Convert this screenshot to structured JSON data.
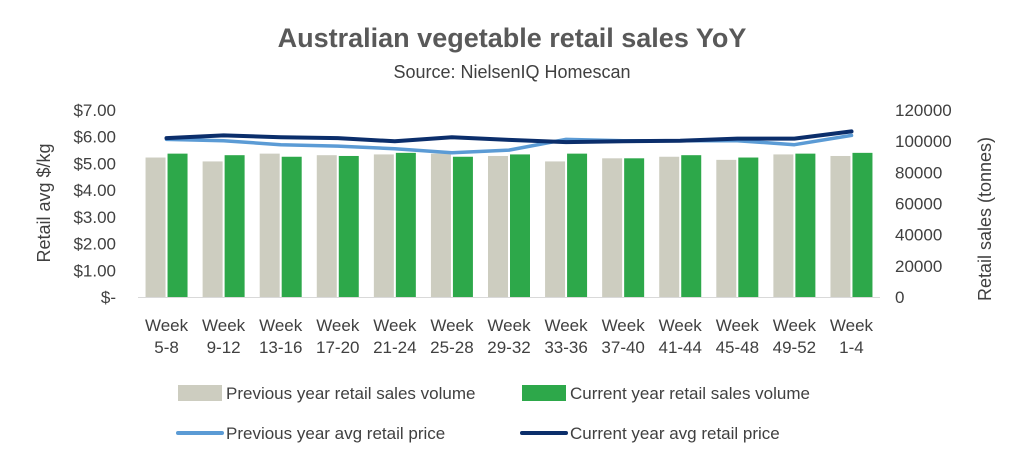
{
  "chart_data": {
    "type": "bar",
    "title": "Australian vegetable retail sales YoY",
    "subtitle": "Source: NielsenIQ Homescan",
    "categories": [
      [
        "Week",
        "5-8"
      ],
      [
        "Week",
        "9-12"
      ],
      [
        "Week",
        "13-16"
      ],
      [
        "Week",
        "17-20"
      ],
      [
        "Week",
        "21-24"
      ],
      [
        "Week",
        "25-28"
      ],
      [
        "Week",
        "29-32"
      ],
      [
        "Week",
        "33-36"
      ],
      [
        "Week",
        "37-40"
      ],
      [
        "Week",
        "41-44"
      ],
      [
        "Week",
        "45-48"
      ],
      [
        "Week",
        "49-52"
      ],
      [
        "Week",
        "1-4"
      ]
    ],
    "y_left": {
      "label": "Retail avg $/kg",
      "min": 0,
      "max": 7,
      "step": 1,
      "tick_labels": [
        "$-",
        "$1.00",
        "$2.00",
        "$3.00",
        "$4.00",
        "$5.00",
        "$6.00",
        "$7.00"
      ]
    },
    "y_right": {
      "label": "Retail sales (tonnes)",
      "min": 0,
      "max": 120000,
      "step": 20000,
      "tick_labels": [
        "0",
        "20000",
        "40000",
        "60000",
        "80000",
        "100000",
        "120000"
      ]
    },
    "grid": false,
    "legend_position": "bottom",
    "series": [
      {
        "name": "Previous year retail sales volume",
        "type": "bar",
        "axis": "right",
        "color": "#CDCDC0",
        "values": [
          89500,
          87000,
          92000,
          91000,
          91500,
          92000,
          90500,
          87000,
          89000,
          90000,
          88000,
          91500,
          90500
        ]
      },
      {
        "name": "Current year retail sales volume",
        "type": "bar",
        "axis": "right",
        "color": "#2DA84A",
        "values": [
          92000,
          91000,
          90000,
          90500,
          92500,
          90000,
          91500,
          92000,
          89000,
          91000,
          89500,
          92000,
          92500
        ]
      },
      {
        "name": "Previous year avg retail price",
        "type": "line",
        "axis": "left",
        "color": "#5B9BD5",
        "values": [
          5.9,
          5.85,
          5.7,
          5.65,
          5.55,
          5.4,
          5.5,
          5.9,
          5.85,
          5.85,
          5.85,
          5.7,
          6.05
        ]
      },
      {
        "name": "Current year avg retail price",
        "type": "line",
        "axis": "left",
        "color": "#0B2E6B",
        "values": [
          5.95,
          6.05,
          5.98,
          5.95,
          5.83,
          5.98,
          5.88,
          5.8,
          5.83,
          5.85,
          5.93,
          5.93,
          6.2
        ]
      }
    ]
  }
}
